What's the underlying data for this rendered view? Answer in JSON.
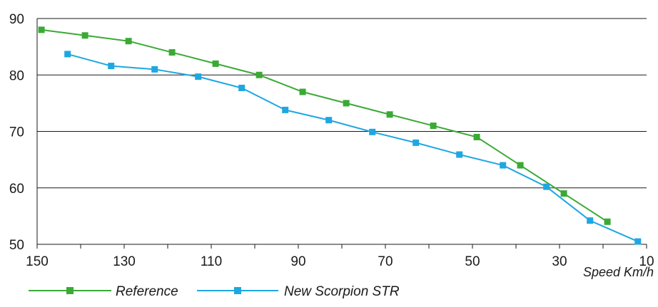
{
  "chart_data": {
    "type": "line",
    "xlabel": "Speed Km/h",
    "ylabel": "",
    "xlim": [
      150,
      10
    ],
    "ylim": [
      50,
      90
    ],
    "x_ticks": [
      "150",
      "130",
      "110",
      "90",
      "70",
      "50",
      "30",
      "10"
    ],
    "y_ticks": [
      "90",
      "80",
      "70",
      "60",
      "50"
    ],
    "grid": "horizontal",
    "legend_position": "bottom-left",
    "series": [
      {
        "name": "Reference",
        "color": "#3aaa35",
        "marker": "square",
        "points": [
          {
            "x": 149,
            "y": 88
          },
          {
            "x": 139,
            "y": 87
          },
          {
            "x": 129,
            "y": 86
          },
          {
            "x": 119,
            "y": 84
          },
          {
            "x": 109,
            "y": 82
          },
          {
            "x": 99,
            "y": 80
          },
          {
            "x": 89,
            "y": 77
          },
          {
            "x": 79,
            "y": 75
          },
          {
            "x": 69,
            "y": 73
          },
          {
            "x": 59,
            "y": 71
          },
          {
            "x": 49,
            "y": 69
          },
          {
            "x": 39,
            "y": 64
          },
          {
            "x": 29,
            "y": 59
          },
          {
            "x": 19,
            "y": 54
          }
        ]
      },
      {
        "name": "New Scorpion STR",
        "color": "#1ea7e1",
        "marker": "square",
        "points": [
          {
            "x": 143,
            "y": 83.7
          },
          {
            "x": 133,
            "y": 81.6
          },
          {
            "x": 123,
            "y": 81
          },
          {
            "x": 113,
            "y": 79.7
          },
          {
            "x": 103,
            "y": 77.7
          },
          {
            "x": 93,
            "y": 73.8
          },
          {
            "x": 83,
            "y": 72
          },
          {
            "x": 73,
            "y": 69.9
          },
          {
            "x": 63,
            "y": 68
          },
          {
            "x": 53,
            "y": 65.9
          },
          {
            "x": 43,
            "y": 64
          },
          {
            "x": 33,
            "y": 60.2
          },
          {
            "x": 23,
            "y": 54.2
          },
          {
            "x": 12,
            "y": 50.5
          }
        ]
      }
    ]
  }
}
